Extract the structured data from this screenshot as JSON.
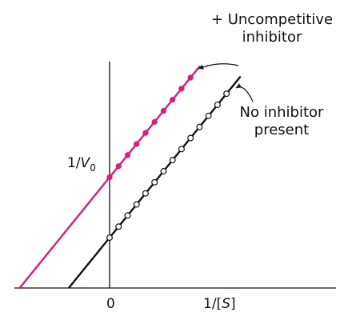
{
  "chart_data": {
    "type": "line",
    "title": "",
    "xlabel": "1/[S]",
    "ylabel": "1/V",
    "ylabel_subscript": "0",
    "x_tick_labels": [
      "0"
    ],
    "xlim": [
      -1.21,
      2.9
    ],
    "ylim": [
      0,
      2.86
    ],
    "grid": false,
    "legend": "none",
    "series": [
      {
        "name": "+ Uncompetitive\ninhibitor",
        "color": "#e0197d",
        "marker": "filled-circle",
        "line_x": [
          -1.0,
          1.0
        ],
        "x_start_points": 0,
        "y_intercept": 1.1,
        "slope": 1.1,
        "points_x": [
          0.0,
          0.1,
          0.2,
          0.3,
          0.4,
          0.5,
          0.6,
          0.7,
          0.8,
          0.9
        ],
        "points_y": [
          1.1,
          1.21,
          1.32,
          1.43,
          1.54,
          1.65,
          1.76,
          1.87,
          1.98,
          2.09
        ]
      },
      {
        "name": "No inhibitor\npresent",
        "color": "#111111",
        "marker": "open-circle",
        "line_x": [
          -0.45,
          1.45
        ],
        "y_intercept": 0.5,
        "slope": 1.1,
        "points_x": [
          0.0,
          0.1,
          0.2,
          0.3,
          0.4,
          0.5,
          0.6,
          0.7,
          0.8,
          0.9,
          1.0,
          1.1,
          1.2,
          1.3
        ],
        "points_y": [
          0.5,
          0.61,
          0.72,
          0.83,
          0.94,
          1.05,
          1.16,
          1.27,
          1.38,
          1.49,
          1.6,
          1.71,
          1.82,
          1.93
        ]
      }
    ],
    "annotations": [
      {
        "series": 0,
        "lines": [
          "+ Uncompetitive",
          "inhibitor"
        ],
        "arrow": true
      },
      {
        "series": 1,
        "lines": [
          "No inhibitor",
          "present"
        ],
        "arrow": true
      }
    ]
  }
}
